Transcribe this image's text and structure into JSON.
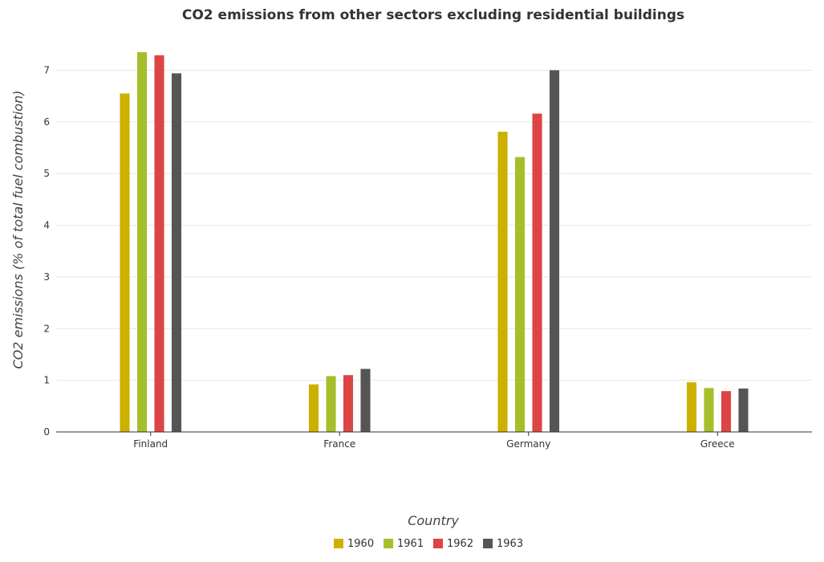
{
  "chart_data": {
    "type": "bar",
    "title": "CO2 emissions from other sectors excluding residential buildings",
    "xlabel": "Country",
    "ylabel": "CO2 emissions (% of total fuel combustion)",
    "categories": [
      "Finland",
      "France",
      "Germany",
      "Greece"
    ],
    "series": [
      {
        "name": "1960",
        "color": "#ccb100",
        "values": [
          6.55,
          0.92,
          5.81,
          0.96
        ]
      },
      {
        "name": "1961",
        "color": "#a4bf2a",
        "values": [
          7.35,
          1.08,
          5.32,
          0.85
        ]
      },
      {
        "name": "1962",
        "color": "#dd4444",
        "values": [
          7.29,
          1.1,
          6.16,
          0.79
        ]
      },
      {
        "name": "1963",
        "color": "#555555",
        "values": [
          6.94,
          1.22,
          7.0,
          0.84
        ]
      }
    ],
    "ylim": [
      0,
      7.8
    ],
    "yticks": [
      0,
      1,
      2,
      3,
      4,
      5,
      6,
      7
    ],
    "grid": true,
    "legend_position": "bottom-center"
  }
}
